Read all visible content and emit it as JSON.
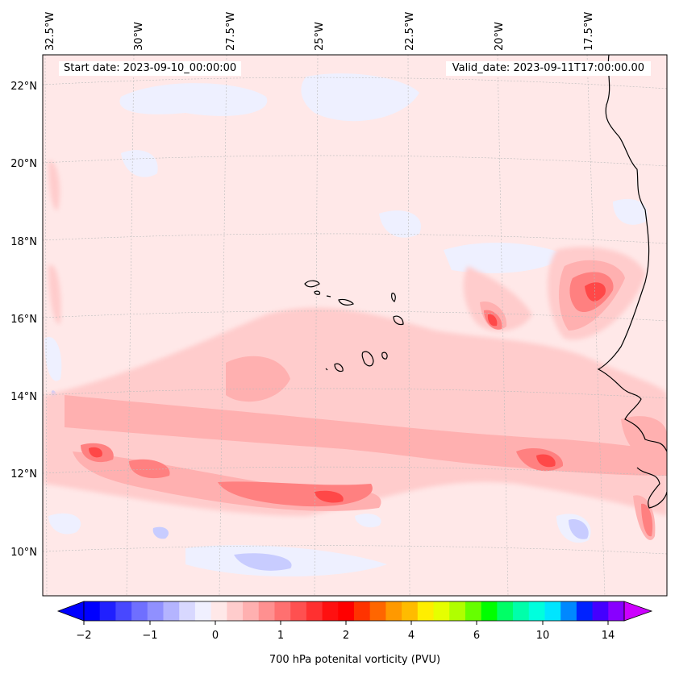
{
  "map": {
    "start_date_label": "Start date: 2023-09-10_00:00:00",
    "valid_date_label": "Valid_date: 2023-09-11T17:00:00.00",
    "lon_labels": [
      "32.5°W",
      "30°W",
      "27.5°W",
      "25°W",
      "22.5°W",
      "20°W",
      "17.5°W"
    ],
    "lat_labels": [
      "22°N",
      "20°N",
      "18°N",
      "16°N",
      "14°N",
      "12°N",
      "10°N"
    ],
    "background_color": "#ffe8e8"
  },
  "colorbar": {
    "title": "700 hPa potenital vorticity (PVU)",
    "tick_labels": [
      "−2",
      "−1",
      "0",
      "1",
      "2",
      "4",
      "6",
      "10",
      "14"
    ],
    "colors": [
      "#0000ff",
      "#2020ff",
      "#4848ff",
      "#6f6fff",
      "#9090ff",
      "#b4b4ff",
      "#d8d8ff",
      "#f0f0ff",
      "#ffe8e8",
      "#ffcccc",
      "#ffb0b0",
      "#ff9090",
      "#ff7070",
      "#ff5050",
      "#ff3030",
      "#ff1010",
      "#ff0000",
      "#ff3300",
      "#ff6600",
      "#ff9900",
      "#ffbb00",
      "#ffee00",
      "#e6ff00",
      "#b0ff00",
      "#66ff00",
      "#00ff00",
      "#00ff66",
      "#00ffaa",
      "#00ffdd",
      "#00e5ff",
      "#0088ff",
      "#0022ff",
      "#4400ff",
      "#8800ff"
    ],
    "under_color": "#0000ff",
    "over_color": "#cc00ff"
  }
}
